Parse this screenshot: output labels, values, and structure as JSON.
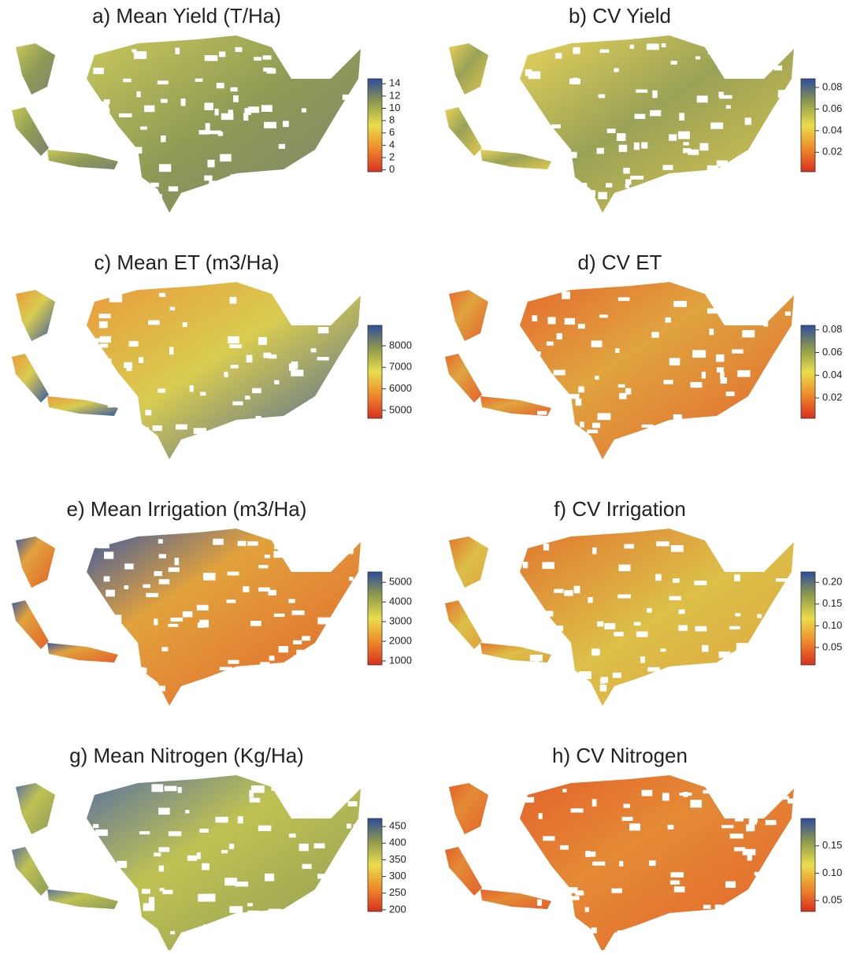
{
  "panels": [
    {
      "title": "a) Mean Yield (T/Ha)",
      "colorbar": {
        "lim": [
          -0.3,
          14.8
        ],
        "ticks": [
          0,
          2,
          4,
          6,
          8,
          10,
          12,
          14
        ]
      }
    },
    {
      "title": "b) CV Yield",
      "colorbar": {
        "lim": [
          0.002,
          0.088
        ],
        "ticks": [
          0.02,
          0.04,
          0.06,
          0.08
        ]
      }
    },
    {
      "title": "c) Mean ET (m3/Ha)",
      "colorbar": {
        "lim": [
          4630,
          8950
        ],
        "ticks": [
          5000,
          6000,
          7000,
          8000
        ]
      }
    },
    {
      "title": "d) CV ET",
      "colorbar": {
        "lim": [
          0.002,
          0.084
        ],
        "ticks": [
          0.02,
          0.04,
          0.06,
          0.08
        ]
      }
    },
    {
      "title": "e) Mean Irrigation (m3/Ha)",
      "colorbar": {
        "lim": [
          800,
          5530
        ],
        "ticks": [
          1000,
          2000,
          3000,
          4000,
          5000
        ]
      }
    },
    {
      "title": "f) CV Irrigation",
      "colorbar": {
        "lim": [
          0.01,
          0.224
        ],
        "ticks": [
          0.05,
          {
            "value": 0.1,
            "label": "0.10"
          },
          0.15,
          {
            "value": 0.2,
            "label": "0.20"
          }
        ]
      }
    },
    {
      "title": "g) Mean Nitrogen (Kg/Ha)",
      "colorbar": {
        "lim": [
          195,
          474
        ],
        "ticks": [
          200,
          250,
          300,
          350,
          400,
          450
        ]
      }
    },
    {
      "title": "h) CV Nitrogen",
      "colorbar": {
        "lim": [
          0.03,
          0.2
        ],
        "ticks": [
          0.05,
          {
            "value": 0.1,
            "label": "0.10"
          },
          0.15
        ]
      }
    }
  ],
  "colormap": [
    "#d7301f",
    "#ee8a2a",
    "#e9de4c",
    "#8f9a4c",
    "#2d4d9c"
  ]
}
